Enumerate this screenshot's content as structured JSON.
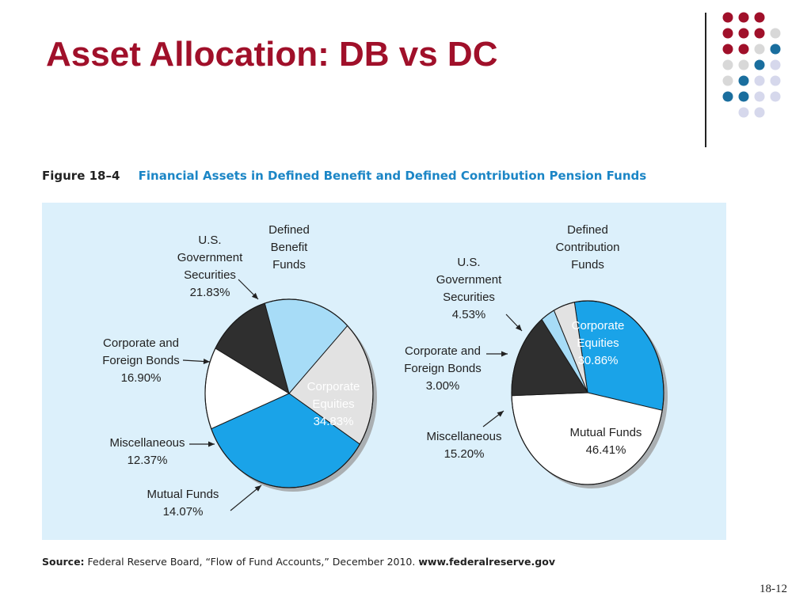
{
  "slide": {
    "title": "Asset Allocation: DB vs DC",
    "page_number": "18-12"
  },
  "figure": {
    "number": "Figure 18–4",
    "caption": "Financial Assets in Defined Benefit and Defined Contribution Pension Funds",
    "source_label": "Source:",
    "source_text": "Federal Reserve Board, “Flow of Fund Accounts,” December 2010.",
    "source_url": "www.federalreserve.gov"
  },
  "colors": {
    "title": "#a0102a",
    "panel_bg": "#dcf0fb",
    "equities": "#1aa3e8",
    "bonds": "#a7dcf7",
    "government": "#e2e2e2",
    "misc": "#2f2f2f",
    "mutual": "#ffffff",
    "dot_red": "#a0102a",
    "dot_gray": "#d8d8d8",
    "dot_blue": "#1a6e9e",
    "dot_lavender": "#d6d8ec"
  },
  "chart_data": [
    {
      "type": "pie",
      "title": [
        "Defined",
        "Benefit",
        "Funds"
      ],
      "slices": [
        {
          "label": [
            "U.S.",
            "Government",
            "Securities"
          ],
          "value": 21.83,
          "value_label": "21.83%",
          "color": "#e2e2e2"
        },
        {
          "label": [
            "Corporate",
            "Equities"
          ],
          "value": 34.83,
          "value_label": "34.83%",
          "color": "#1aa3e8"
        },
        {
          "label": [
            "Mutual Funds"
          ],
          "value": 14.07,
          "value_label": "14.07%",
          "color": "#ffffff"
        },
        {
          "label": [
            "Miscellaneous"
          ],
          "value": 12.37,
          "value_label": "12.37%",
          "color": "#2f2f2f"
        },
        {
          "label": [
            "Corporate and",
            "Foreign Bonds"
          ],
          "value": 16.9,
          "value_label": "16.90%",
          "color": "#a7dcf7"
        }
      ]
    },
    {
      "type": "pie",
      "title": [
        "Defined",
        "Contribution",
        "Funds"
      ],
      "slices": [
        {
          "label": [
            "Corporate",
            "Equities"
          ],
          "value": 30.86,
          "value_label": "30.86%",
          "color": "#1aa3e8"
        },
        {
          "label": [
            "Mutual Funds"
          ],
          "value": 46.41,
          "value_label": "46.41%",
          "color": "#ffffff"
        },
        {
          "label": [
            "Miscellaneous"
          ],
          "value": 15.2,
          "value_label": "15.20%",
          "color": "#2f2f2f"
        },
        {
          "label": [
            "Corporate and",
            "Foreign Bonds"
          ],
          "value": 3.0,
          "value_label": "3.00%",
          "color": "#a7dcf7"
        },
        {
          "label": [
            "U.S.",
            "Government",
            "Securities"
          ],
          "value": 4.53,
          "value_label": "4.53%",
          "color": "#e2e2e2"
        }
      ]
    }
  ]
}
